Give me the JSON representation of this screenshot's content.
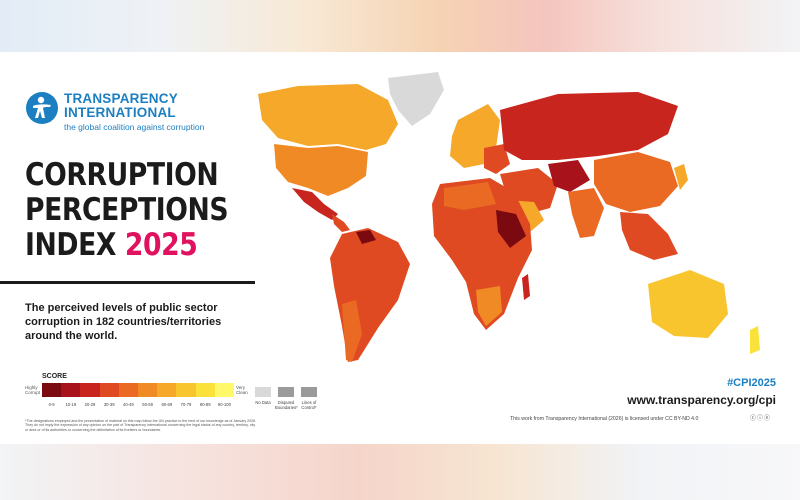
{
  "organization": {
    "name_line1": "TRANSPARENCY",
    "name_line2": "INTERNATIONAL",
    "tagline": "the global coalition against corruption",
    "brand_color": "#1b7fc1"
  },
  "title": {
    "line1": "CORRUPTION",
    "line2": "PERCEPTIONS",
    "line3": "INDEX",
    "year": "2025",
    "year_color": "#e0115f"
  },
  "description": "The perceived levels of public sector corruption in 182 countries/territories around the world.",
  "legend": {
    "title": "SCORE",
    "high_label": "Highly Corrupt",
    "low_label": "Very Clean",
    "ranges": [
      "0-9",
      "10-19",
      "20-29",
      "30-39",
      "40-49",
      "50-59",
      "60-69",
      "70-79",
      "80-89",
      "90-100"
    ],
    "colors": [
      "#7a0a10",
      "#a8121b",
      "#c9251f",
      "#df4a22",
      "#ea6a23",
      "#f08a25",
      "#f5a82a",
      "#f9c52f",
      "#fbe23a",
      "#fff86a"
    ],
    "extras": [
      {
        "label": "No Data",
        "color": "#d9d9d9"
      },
      {
        "label": "Disputed Boundaries*",
        "color": "#9a9a9a"
      },
      {
        "label": "Lines of Control*",
        "color": "#9a9a9a"
      }
    ]
  },
  "disclaimer": "*The designations employed and the presentation of material on this map follow the UN practice to the best of our knowledge as of January 2026. They do not imply the expression of any opinion on the part of Transparency International concerning the legal status of any country, territory, city or area or of its authorities or concerning the delimitation of its frontiers or boundaries.",
  "hashtag": "#CPI2025",
  "url": "www.transparency.org/cpi",
  "license": "This work from Transparency International (2026) is licensed under CC BY-ND 4.0",
  "license_icons": "ⓒⓘⓔ",
  "map_regions": [
    {
      "name": "greenland",
      "score_range": "No Data"
    },
    {
      "name": "north-america",
      "score_range": "60-69"
    },
    {
      "name": "usa",
      "score_range": "60-69"
    },
    {
      "name": "south-america",
      "score_range": "30-39"
    },
    {
      "name": "europe",
      "score_range": "60-69"
    },
    {
      "name": "russia",
      "score_range": "20-29"
    },
    {
      "name": "africa",
      "score_range": "30-39"
    },
    {
      "name": "middle-east",
      "score_range": "40-49"
    },
    {
      "name": "asia",
      "score_range": "40-49"
    },
    {
      "name": "australia",
      "score_range": "70-79"
    }
  ]
}
